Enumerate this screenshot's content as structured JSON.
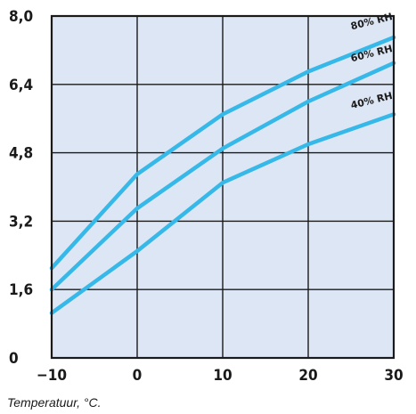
{
  "chart_data": {
    "type": "line",
    "xlabel": "Temperatuur, °C.",
    "ylabel": "",
    "xlim": [
      -10,
      30
    ],
    "ylim": [
      0,
      8
    ],
    "x_ticks": [
      -10,
      0,
      10,
      20,
      30
    ],
    "y_ticks": [
      0,
      1.6,
      3.2,
      4.8,
      6.4,
      8.0
    ],
    "x_tick_labels": [
      "−10",
      "0",
      "10",
      "20",
      "30"
    ],
    "y_tick_labels": [
      "0",
      "1,6",
      "3,2",
      "4,8",
      "6,4",
      "8,0"
    ],
    "grid": true,
    "background_color": "#dde6f4",
    "line_color": "#36b8e8",
    "x": [
      -10,
      0,
      10,
      20,
      30
    ],
    "series": [
      {
        "name": "80% RH",
        "values": [
          2.1,
          4.3,
          5.7,
          6.7,
          7.5
        ]
      },
      {
        "name": "60% RH",
        "values": [
          1.6,
          3.5,
          4.9,
          6.0,
          6.9
        ]
      },
      {
        "name": "40% RH",
        "values": [
          1.05,
          2.5,
          4.1,
          5.0,
          5.7
        ]
      }
    ]
  }
}
